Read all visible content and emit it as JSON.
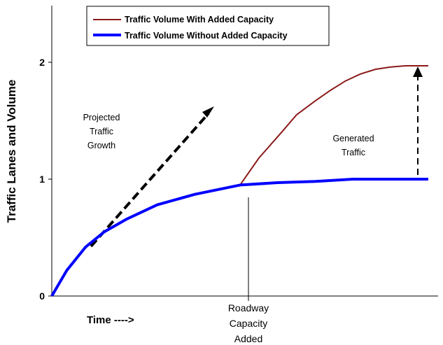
{
  "chart_data": {
    "type": "line",
    "ylabel": "Traffic Lanes and Volume",
    "xlabel": "Time ---->",
    "ylim": [
      0,
      2.5
    ],
    "y_ticks": [
      "0",
      "1",
      "2"
    ],
    "grid": false,
    "legend_position": "top",
    "series": [
      {
        "name": "Traffic Volume With Added Capacity",
        "color": "#8b1a1a",
        "x": [
          0.0,
          0.04,
          0.09,
          0.14,
          0.2,
          0.28,
          0.38,
          0.5,
          0.55,
          0.61,
          0.65,
          0.7,
          0.74,
          0.78,
          0.82,
          0.86,
          0.9,
          0.94,
          1.0
        ],
        "y": [
          0.0,
          0.22,
          0.42,
          0.55,
          0.66,
          0.78,
          0.87,
          0.95,
          1.18,
          1.4,
          1.55,
          1.67,
          1.76,
          1.84,
          1.9,
          1.94,
          1.96,
          1.97,
          1.97
        ]
      },
      {
        "name": "Traffic Volume Without Added Capacity",
        "color": "#0000ff",
        "x": [
          0.0,
          0.04,
          0.09,
          0.14,
          0.2,
          0.28,
          0.38,
          0.5,
          0.6,
          0.7,
          0.8,
          0.9,
          1.0
        ],
        "y": [
          0.0,
          0.22,
          0.42,
          0.55,
          0.66,
          0.78,
          0.87,
          0.95,
          0.97,
          0.98,
          1.0,
          1.0,
          1.0
        ]
      }
    ],
    "annotations": {
      "projected": [
        "Projected",
        "Traffic",
        "Growth"
      ],
      "generated": [
        "Generated",
        "Traffic"
      ],
      "capacity": [
        "Roadway",
        "Capacity",
        "Added"
      ],
      "time_label": "Time ---->"
    }
  }
}
